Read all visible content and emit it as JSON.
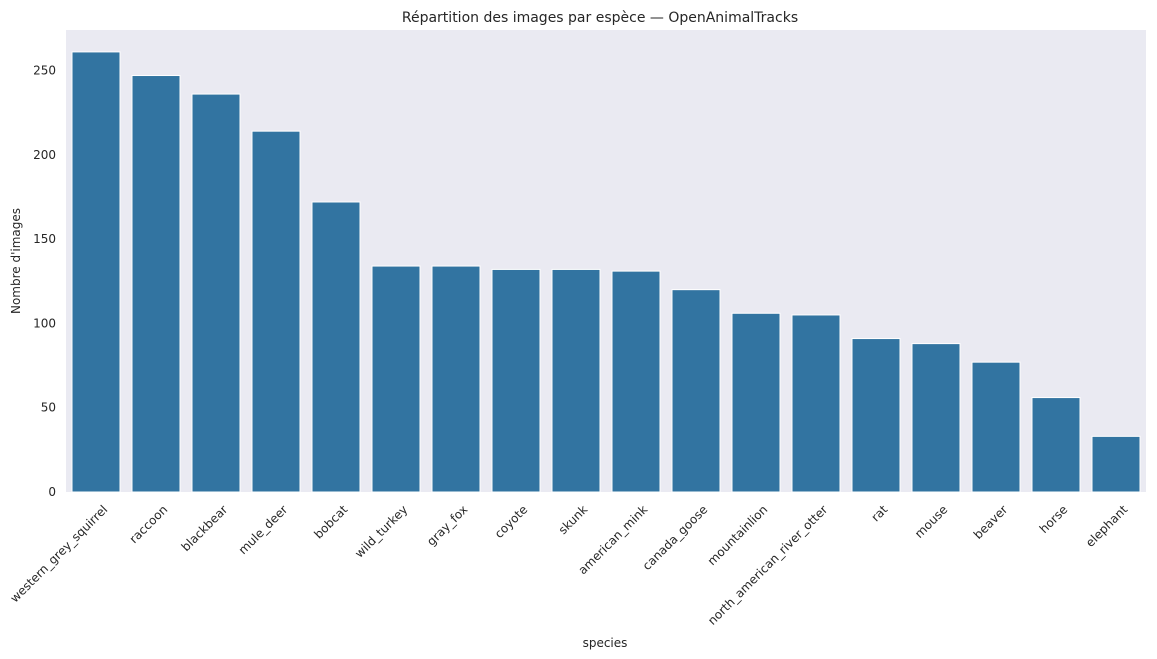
{
  "chart_data": {
    "type": "bar",
    "title": "Répartition des images par espèce — OpenAnimalTracks",
    "xlabel": "species",
    "ylabel": "Nombre d'images",
    "categories": [
      "western_grey_squirrel",
      "raccoon",
      "blackbear",
      "mule_deer",
      "bobcat",
      "wild_turkey",
      "gray_fox",
      "coyote",
      "skunk",
      "american_mink",
      "canada_goose",
      "mountainlion",
      "north_american_river_otter",
      "rat",
      "mouse",
      "beaver",
      "horse",
      "elephant"
    ],
    "values": [
      261,
      247,
      236,
      214,
      172,
      134,
      134,
      132,
      132,
      131,
      120,
      106,
      105,
      91,
      88,
      77,
      56,
      33
    ],
    "ylim": [
      0,
      274
    ],
    "yticks": [
      0,
      50,
      100,
      150,
      200,
      250
    ],
    "grid": false,
    "colors": {
      "bar": "#3274a1",
      "plot_background": "#eaeaf2",
      "text": "#262626"
    }
  }
}
